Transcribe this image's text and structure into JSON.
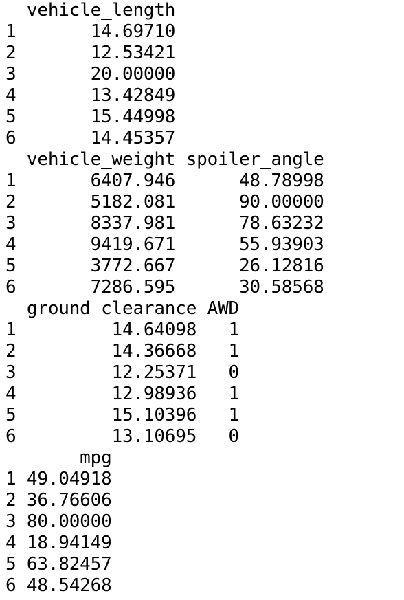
{
  "output": {
    "blocks": [
      {
        "header": "  vehicle_length",
        "rows": [
          "1       14.69710",
          "2       12.53421",
          "3       20.00000",
          "4       13.42849",
          "5       15.44998",
          "6       14.45357"
        ]
      },
      {
        "header": "  vehicle_weight spoiler_angle",
        "rows": [
          "1       6407.946      48.78998",
          "2       5182.081      90.00000",
          "3       8337.981      78.63232",
          "4       9419.671      55.93903",
          "5       3772.667      26.12816",
          "6       7286.595      30.58568"
        ]
      },
      {
        "header": "  ground_clearance AWD",
        "rows": [
          "1         14.64098   1",
          "2         14.36668   1",
          "3         12.25371   0",
          "4         12.98936   1",
          "5         15.10396   1",
          "6         13.10695   0"
        ]
      },
      {
        "header": "       mpg",
        "rows": [
          "1 49.04918",
          "2 36.76606",
          "3 80.00000",
          "4 18.94149",
          "5 63.82457",
          "6 48.54268"
        ]
      }
    ]
  }
}
